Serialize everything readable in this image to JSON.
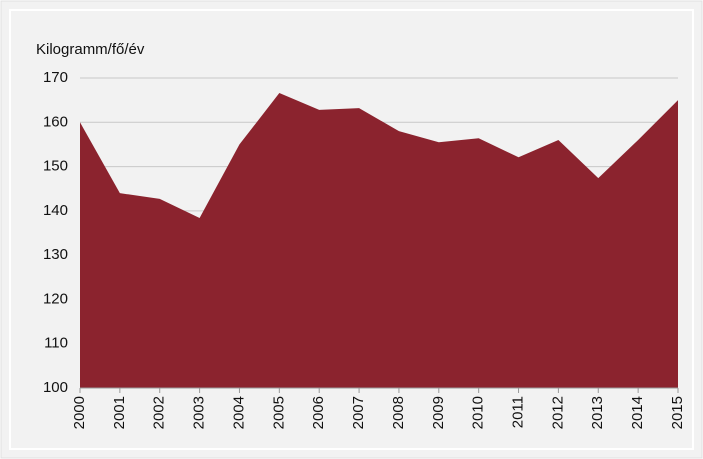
{
  "chart_data": {
    "type": "area",
    "y_label": "Kilogramm/fő/év",
    "categories": [
      "2000",
      "2001",
      "2002",
      "2003",
      "2004",
      "2005",
      "2006",
      "2007",
      "2008",
      "2009",
      "2010",
      "2011",
      "2012",
      "2013",
      "2014",
      "2015"
    ],
    "values": [
      160,
      144,
      142.7,
      138.4,
      155,
      166.6,
      162.8,
      163.2,
      158,
      155.5,
      156.4,
      152.1,
      156,
      147.4,
      156,
      165
    ],
    "color": "#8b232e",
    "ylim": [
      100,
      170
    ],
    "yticks": [
      100,
      110,
      120,
      130,
      140,
      150,
      160,
      170
    ],
    "grid": true
  }
}
